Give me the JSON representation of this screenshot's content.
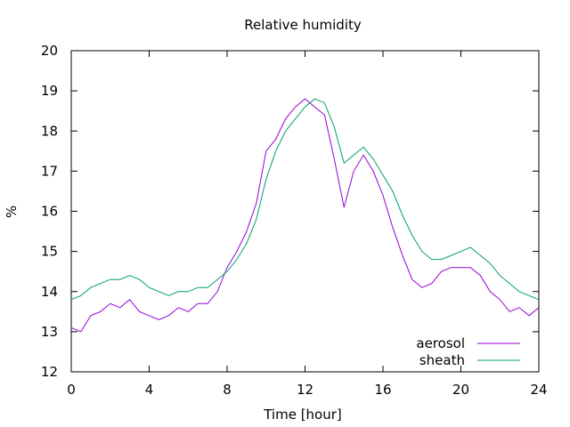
{
  "chart_data": {
    "type": "line",
    "title": "Relative humidity",
    "xlabel": "Time [hour]",
    "ylabel": "%",
    "xlim": [
      0,
      24
    ],
    "ylim": [
      12,
      20
    ],
    "xticks": [
      0,
      4,
      8,
      12,
      16,
      20,
      24
    ],
    "yticks": [
      12,
      13,
      14,
      15,
      16,
      17,
      18,
      19,
      20
    ],
    "grid": false,
    "legend_position": "bottom-right",
    "series": [
      {
        "name": "aerosol",
        "color": "#9400d3",
        "x": [
          0,
          0.5,
          1,
          1.5,
          2,
          2.5,
          3,
          3.5,
          4,
          4.5,
          5,
          5.5,
          6,
          6.5,
          7,
          7.5,
          8,
          8.5,
          9,
          9.5,
          10,
          10.5,
          11,
          11.5,
          12,
          12.5,
          13,
          13.5,
          14,
          14.5,
          15,
          15.5,
          16,
          16.5,
          17,
          17.5,
          18,
          18.5,
          19,
          19.5,
          20,
          20.5,
          21,
          21.5,
          22,
          22.5,
          23,
          23.5,
          24
        ],
        "y": [
          13.1,
          13.0,
          13.4,
          13.5,
          13.7,
          13.6,
          13.8,
          13.5,
          13.4,
          13.3,
          13.4,
          13.6,
          13.5,
          13.7,
          13.7,
          14.0,
          14.6,
          15.0,
          15.5,
          16.2,
          17.5,
          17.8,
          18.3,
          18.6,
          18.8,
          18.6,
          18.4,
          17.3,
          16.1,
          17.0,
          17.4,
          17.0,
          16.4,
          15.6,
          14.9,
          14.3,
          14.1,
          14.2,
          14.5,
          14.6,
          14.6,
          14.6,
          14.4,
          14.0,
          13.8,
          13.5,
          13.6,
          13.4,
          13.6
        ]
      },
      {
        "name": "sheath",
        "color": "#009e73",
        "x": [
          0,
          0.5,
          1,
          1.5,
          2,
          2.5,
          3,
          3.5,
          4,
          4.5,
          5,
          5.5,
          6,
          6.5,
          7,
          7.5,
          8,
          8.5,
          9,
          9.5,
          10,
          10.5,
          11,
          11.5,
          12,
          12.5,
          13,
          13.5,
          14,
          14.5,
          15,
          15.5,
          16,
          16.5,
          17,
          17.5,
          18,
          18.5,
          19,
          19.5,
          20,
          20.5,
          21,
          21.5,
          22,
          22.5,
          23,
          23.5,
          24
        ],
        "y": [
          13.8,
          13.9,
          14.1,
          14.2,
          14.3,
          14.3,
          14.4,
          14.3,
          14.1,
          14.0,
          13.9,
          14.0,
          14.0,
          14.1,
          14.1,
          14.3,
          14.5,
          14.8,
          15.2,
          15.8,
          16.8,
          17.5,
          18.0,
          18.3,
          18.6,
          18.8,
          18.7,
          18.1,
          17.2,
          17.4,
          17.6,
          17.3,
          16.9,
          16.5,
          15.9,
          15.4,
          15.0,
          14.8,
          14.8,
          14.9,
          15.0,
          15.1,
          14.9,
          14.7,
          14.4,
          14.2,
          14.0,
          13.9,
          13.8
        ]
      }
    ]
  }
}
